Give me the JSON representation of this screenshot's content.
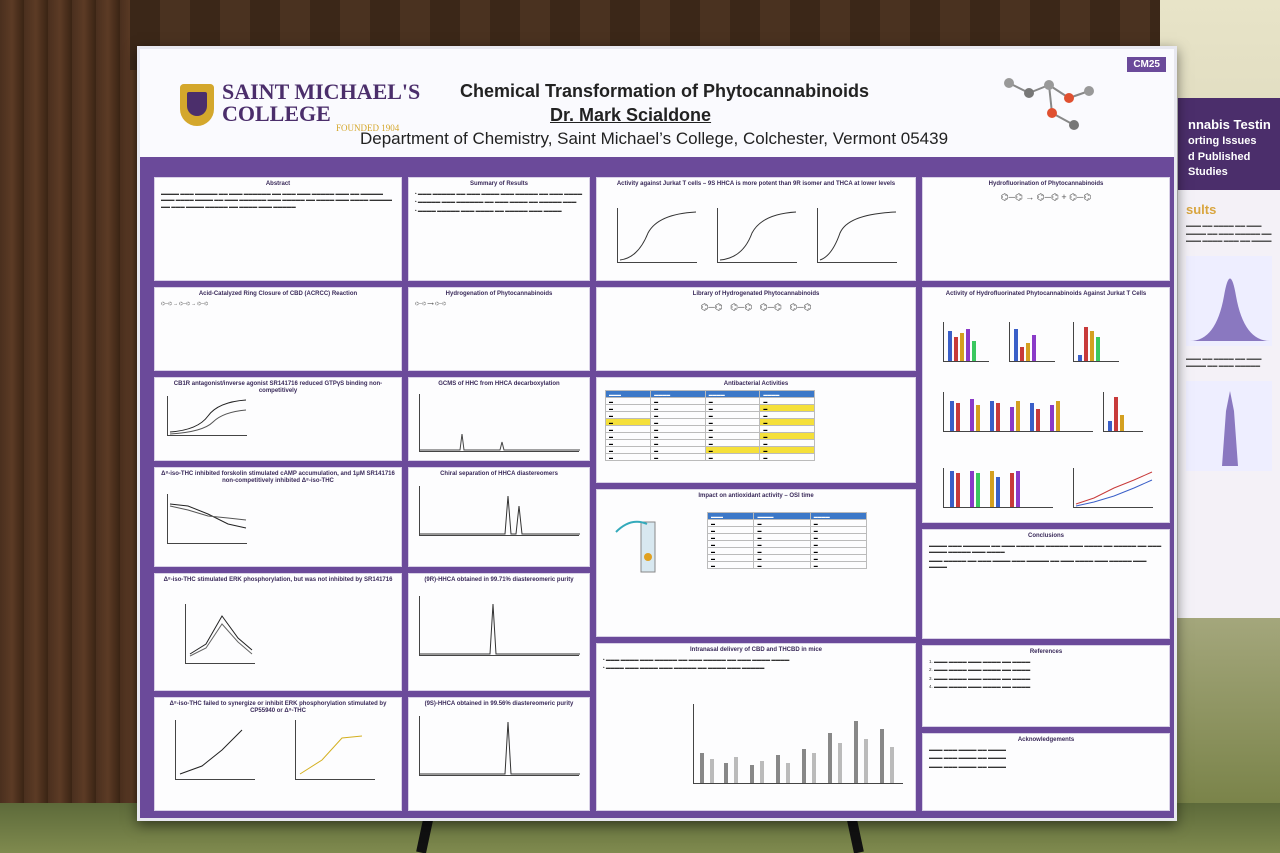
{
  "poster": {
    "logo_line1": "SAINT MICHAEL'S",
    "logo_line2": "COLLEGE",
    "logo_founded": "FOUNDED 1904",
    "badge": "CM25",
    "title": "Chemical Transformation of Phytocannabinoids",
    "author": "Dr. Mark Scialdone",
    "department": "Department of Chemistry, Saint Michael’s College, Colchester, Vermont 05439"
  },
  "panels": {
    "abstract": "Abstract",
    "summary": "Summary of Results",
    "jurkat": "Activity against Jurkat T cells – 9S HHCA is more potent than 9R isomer and THCA at lower levels",
    "hydrofluorination": "Hydrofluorination of Phytocannabinoids",
    "acrcc": "Acid-Catalyzed Ring Closure of CBD (ACRCC) Reaction",
    "hydrogenation": "Hydrogenation of Phytocannabinoids",
    "library": "Library of Hydrogenated Phytocannabinoids",
    "fluorinated_activity": "Activity of Hydrofluorinated Phytocannabinoids Against Jurkat T Cells",
    "cb1r": "CB1R antagonist/inverse agonist SR141716 reduced GTPγS binding non-competitively",
    "gcms": "GCMS of HHC from HHCA decarboxylation",
    "antibacterial": "Antibacterial Activities",
    "forskolin": "Δ⁸-iso-THC inhibited forskolin stimulated cAMP accumulation, and 1μM SR141716 non-competitively inhibited Δ⁸-iso-THC",
    "chiral": "Chiral separation of HHCA diastereomers",
    "antioxidant": "Impact on antioxidant activity – OSI time",
    "conclusions": "Conclusions",
    "erk": "Δ⁸-iso-THC stimulated ERK phosphorylation, but was not inhibited by SR141716",
    "purity_9s": "(9R)-HHCA obtained in 99.71% diastereomeric purity",
    "references": "References",
    "synergize": "Δ⁸-iso-THC failed to synergize or inhibit ERK phosphorylation stimulated by CP55940 or Δ⁹-THC",
    "purity_9r": "(9S)-HHCA obtained in 99.56% diastereomeric purity",
    "intranasal": "Intranasal delivery of CBD and THCBD in mice",
    "acknowledgements": "Acknowledgements"
  },
  "side_poster": {
    "heading": "nnabis Testin",
    "sub1": "orting Issues",
    "sub2": "d Published Studies",
    "results": "sults"
  },
  "chart_data": {
    "type": "bar",
    "categories": [],
    "series": []
  }
}
